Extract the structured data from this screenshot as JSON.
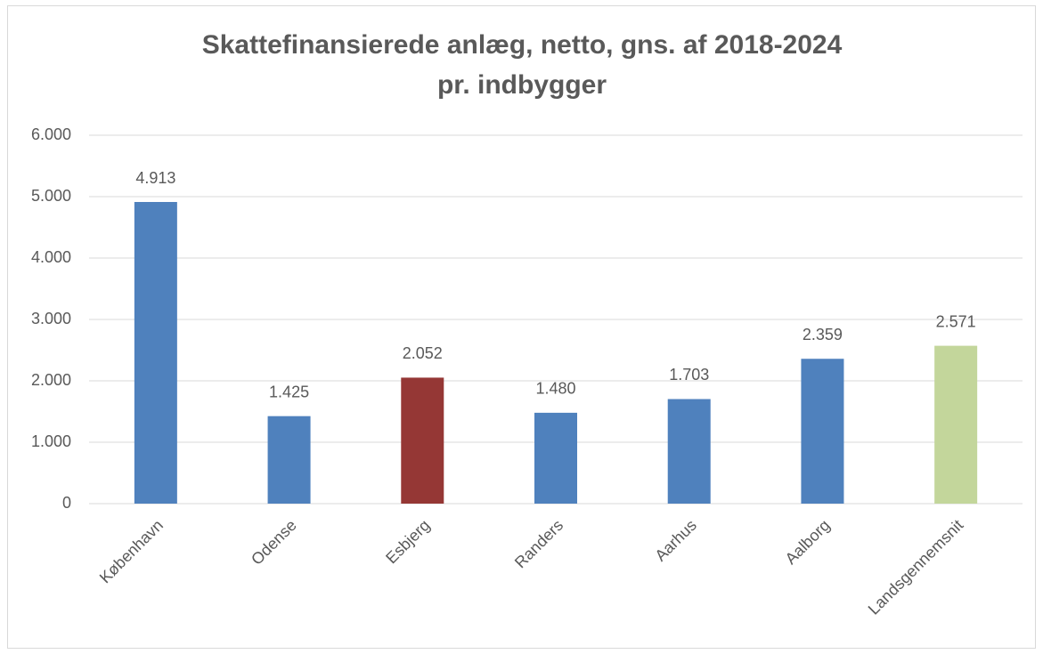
{
  "chart_data": {
    "type": "bar",
    "title": [
      "Skattefinansierede anlæg, netto, gns. af 2018-2024",
      "pr. indbygger"
    ],
    "categories": [
      "København",
      "Odense",
      "Esbjerg",
      "Randers",
      "Aarhus",
      "Aalborg",
      "Landsgennemsnit"
    ],
    "values": [
      4913,
      1425,
      2052,
      1480,
      1703,
      2359,
      2571
    ],
    "value_labels": [
      "4.913",
      "1.425",
      "2.052",
      "1.480",
      "1.703",
      "2.359",
      "2.571"
    ],
    "colors": [
      "#4f81bd",
      "#4f81bd",
      "#953735",
      "#4f81bd",
      "#4f81bd",
      "#4f81bd",
      "#c3d69b"
    ],
    "ylim": [
      0,
      6000
    ],
    "yticks": [
      0,
      {
        "value": 1000,
        "label": "1.000"
      },
      {
        "value": 2000,
        "label": "2.000"
      },
      {
        "value": 3000,
        "label": "3.000"
      },
      {
        "value": 4000,
        "label": "4.000"
      },
      {
        "value": 5000,
        "label": "5.000"
      },
      {
        "value": 6000,
        "label": "6.000"
      }
    ],
    "grid": true
  }
}
